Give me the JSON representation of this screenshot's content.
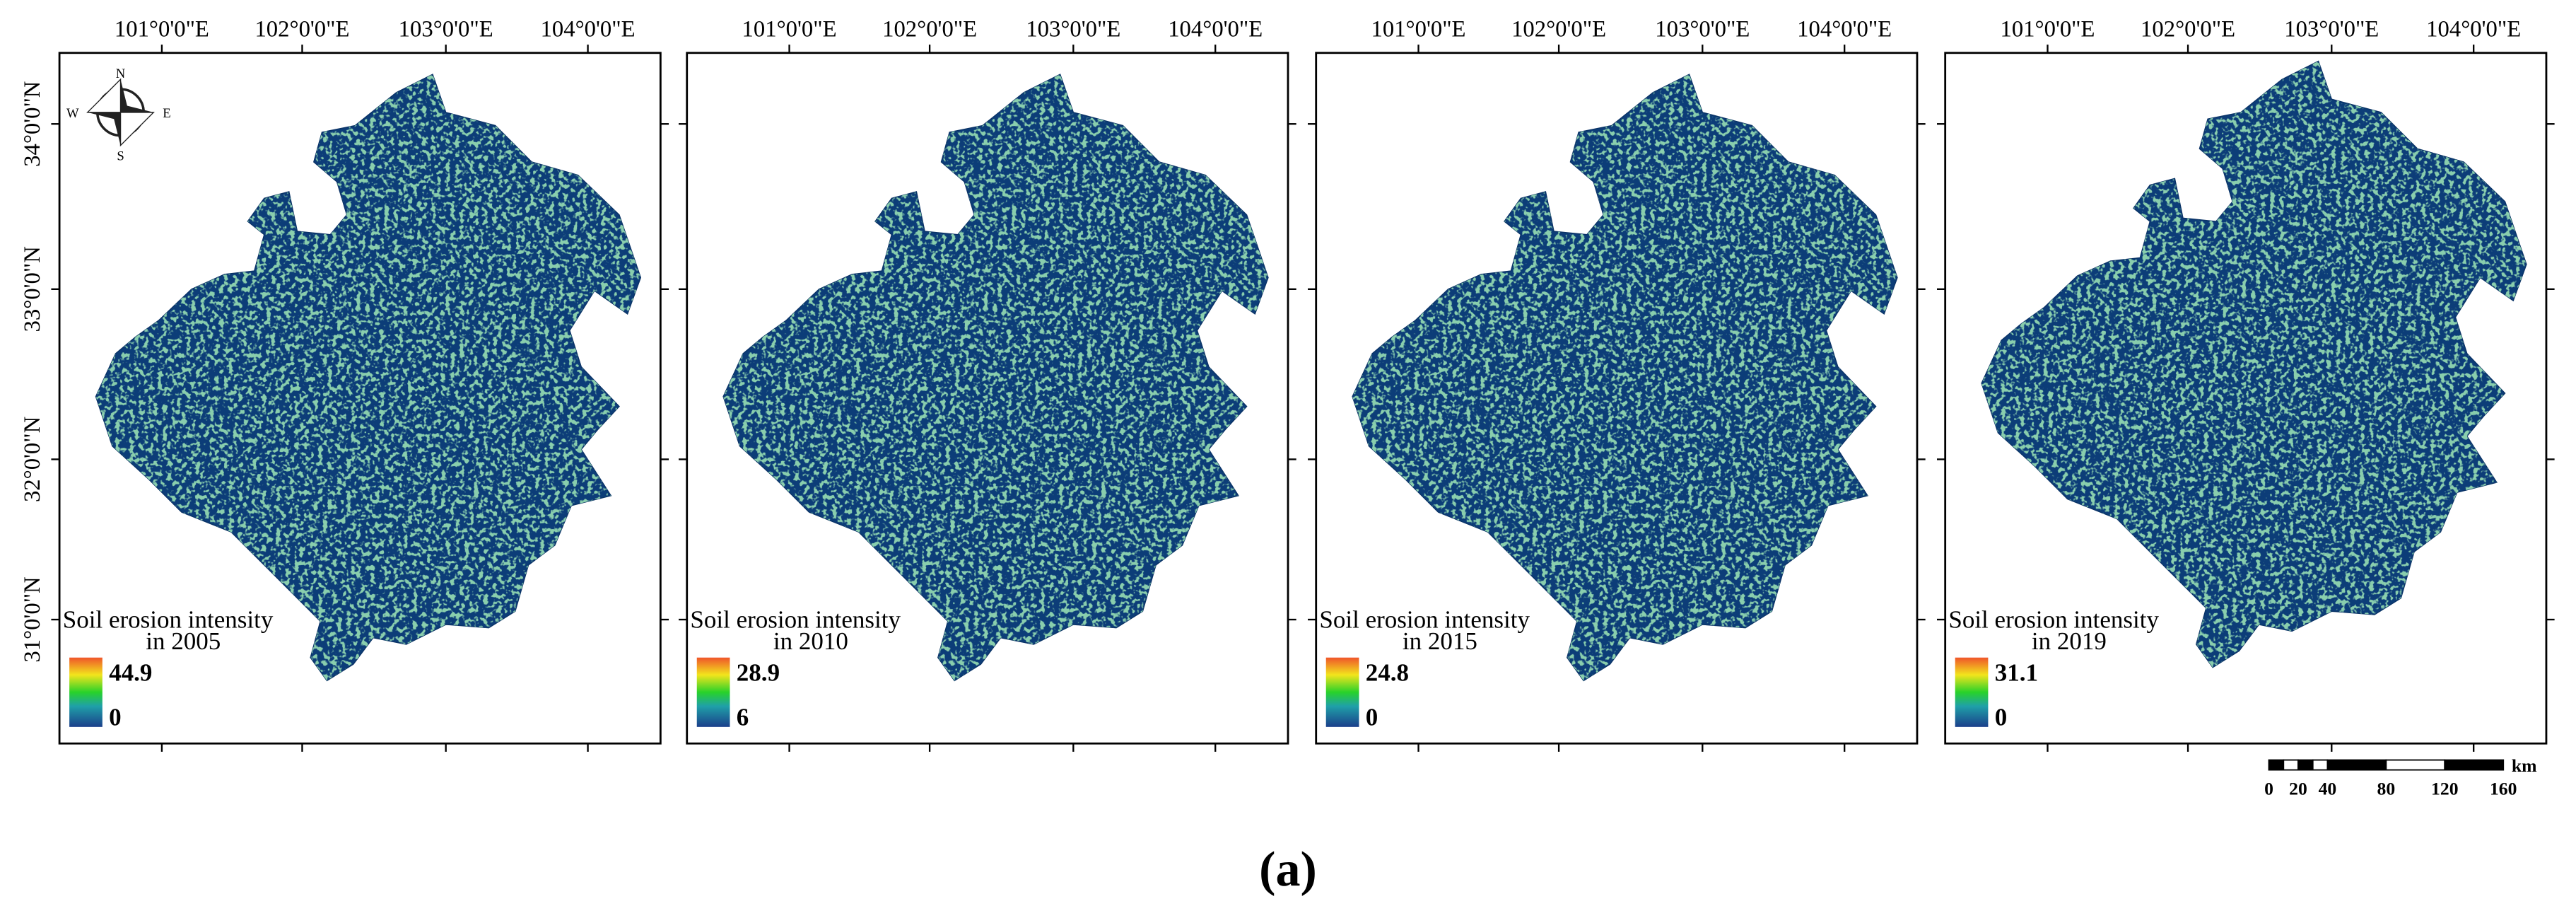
{
  "x_labels": [
    "101°0'0\"E",
    "102°0'0\"E",
    "103°0'0\"E",
    "104°0'0\"E"
  ],
  "y_labels": [
    "34°0'0\"N",
    "33°0'0\"N",
    "32°0'0\"N",
    "31°0'0\"N"
  ],
  "compass": {
    "n": "N",
    "s": "S",
    "w": "W",
    "e": "E"
  },
  "panels": [
    {
      "legend_title": "Soil erosion intensity",
      "legend_year": "in 2005",
      "max": 44.9,
      "min": 0
    },
    {
      "legend_title": "Soil erosion intensity",
      "legend_year": "in 2010",
      "max": 28.9,
      "min": 6
    },
    {
      "legend_title": "Soil erosion intensity",
      "legend_year": "in 2015",
      "max": 24.8,
      "min": 0
    },
    {
      "legend_title": "Soil erosion intensity",
      "legend_year": "in 2019",
      "max": 31.1,
      "min": 0
    }
  ],
  "scale_bar": {
    "ticks": [
      0,
      20,
      40,
      80,
      120,
      160
    ],
    "unit": "km"
  },
  "caption": "(a)"
}
